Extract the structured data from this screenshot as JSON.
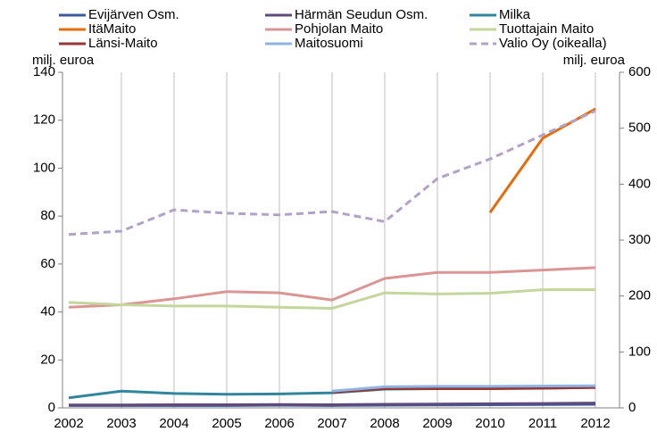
{
  "chart_data": {
    "type": "line",
    "y_label": "milj. euroa",
    "y2_label": "milj. euroa",
    "categories": [
      "2002",
      "2003",
      "2004",
      "2005",
      "2006",
      "2007",
      "2008",
      "2009",
      "2010",
      "2011",
      "2012"
    ],
    "ylim": [
      0,
      140
    ],
    "yticks": [
      0,
      20,
      40,
      60,
      80,
      100,
      120,
      140
    ],
    "y2lim": [
      0,
      600
    ],
    "y2ticks": [
      0,
      100,
      200,
      300,
      400,
      500,
      600
    ],
    "grid": "x",
    "series": [
      {
        "name": "Evijärven Osm.",
        "color": "#3b5a9a",
        "values": [
          1,
          1,
          1,
          1,
          1.1,
          1,
          1.1,
          1.2,
          1.3,
          1.4,
          1.5
        ]
      },
      {
        "name": "Härmän Seudun Osm.",
        "color": "#604a7b",
        "values": [
          1.2,
          1.2,
          1.3,
          1.3,
          1.4,
          1.3,
          1.5,
          1.6,
          1.7,
          1.8,
          2.0
        ]
      },
      {
        "name": "Milka",
        "color": "#31859c",
        "values": [
          4.2,
          7,
          6,
          5.7,
          5.8,
          6.3,
          7.8,
          8,
          8.2,
          8.3,
          8.5
        ]
      },
      {
        "name": "ItäMaito",
        "color": "#e46c0a",
        "values": [
          null,
          null,
          null,
          null,
          null,
          null,
          null,
          null,
          81.5,
          112.5,
          124.7
        ]
      },
      {
        "name": "Pohjolan Maito",
        "color": "#d99694",
        "values": [
          42,
          43,
          45.5,
          48.5,
          48,
          45,
          54,
          56.5,
          56.5,
          57.5,
          58.5
        ]
      },
      {
        "name": "Tuottajain Maito",
        "color": "#c3d69b",
        "values": [
          44,
          43,
          42.5,
          42.5,
          42,
          41.5,
          48,
          47.5,
          47.8,
          49.3,
          49.3
        ]
      },
      {
        "name": "Länsi-Maito",
        "color": "#953735",
        "values": [
          null,
          null,
          null,
          null,
          null,
          6.5,
          8,
          8,
          8,
          8.2,
          8.5
        ]
      },
      {
        "name": "Maitosuomi",
        "color": "#8eb4e3",
        "values": [
          null,
          null,
          null,
          null,
          null,
          7,
          8.8,
          9,
          9,
          9.1,
          9.2
        ]
      },
      {
        "name": "Valio Oy (oikealla)",
        "color": "#b3a2c7",
        "axis": "y2",
        "dashed": true,
        "values": [
          310,
          316,
          354,
          348,
          345,
          351,
          333,
          410,
          445,
          488,
          531
        ]
      }
    ]
  }
}
